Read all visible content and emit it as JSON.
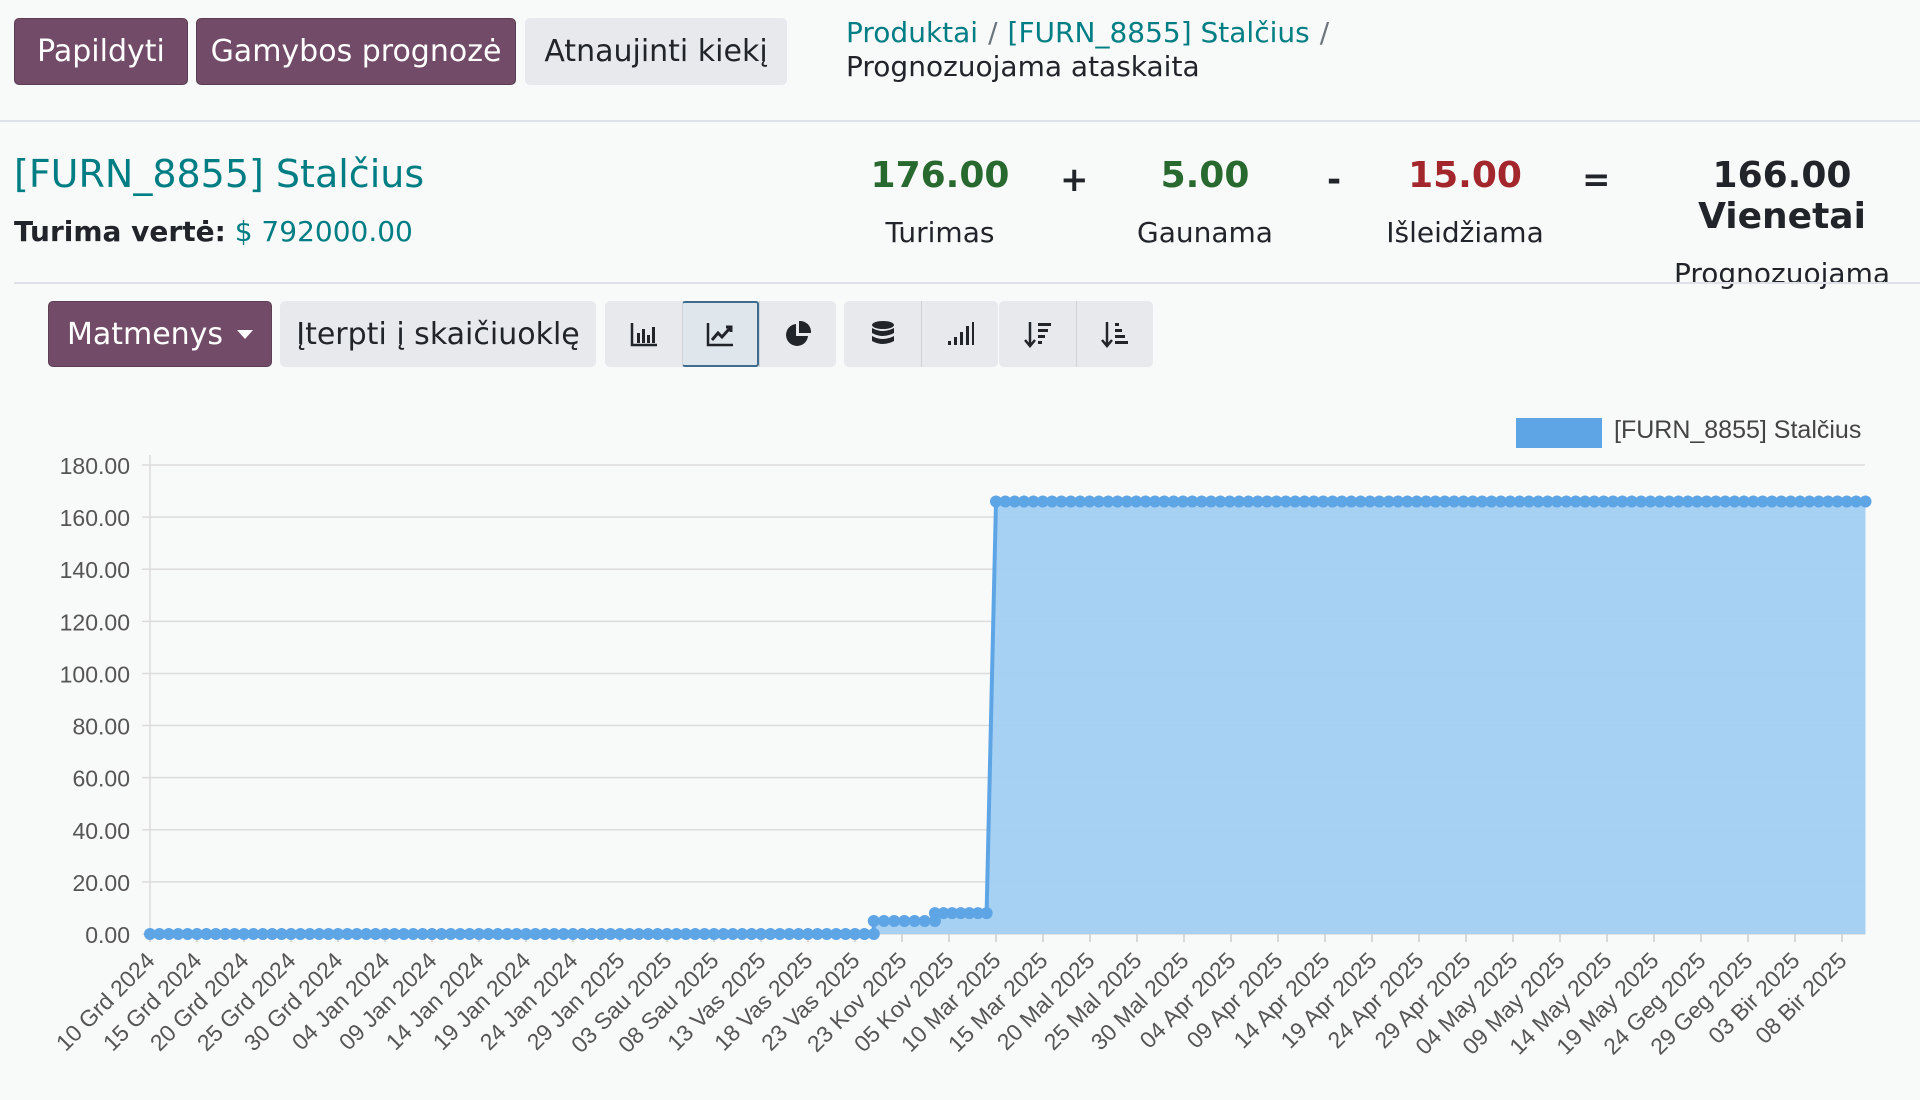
{
  "control_panel": {
    "buttons": {
      "replenish": "Papildyti",
      "manufacturing_forecast": "Gamybos prognozė",
      "update_quantity": "Atnaujinti kiekį"
    },
    "breadcrumb": {
      "items": [
        "Produktai",
        "[FURN_8855] Stalčius"
      ],
      "separator": "/",
      "current": "Prognozuojama ataskaita"
    }
  },
  "product": {
    "name": "[FURN_8855] Stalčius",
    "value_label": "Turima vertė:",
    "value": "$ 792000.00"
  },
  "summary": {
    "on_hand": {
      "value": "176.00",
      "label": "Turimas"
    },
    "op_plus": "+",
    "incoming": {
      "value": "5.00",
      "label": "Gaunama"
    },
    "op_minus": "-",
    "outgoing": {
      "value": "15.00",
      "label": "Išleidžiama"
    },
    "op_equals": "=",
    "forecast": {
      "value": "166.00 Vienetai",
      "label": "Prognozuojama"
    }
  },
  "toolbar": {
    "measures_label": "Matmenys",
    "insert_label": "Įterpti į skaičiuoklę",
    "view_buttons": [
      "bar-chart-icon",
      "line-chart-icon",
      "pie-chart-icon"
    ],
    "active_view": "line-chart-icon",
    "option_buttons": [
      "stacked-icon",
      "cumulative-icon"
    ],
    "sort_buttons": [
      "sort-descending-icon",
      "sort-ascending-icon"
    ]
  },
  "colors": {
    "primary": "#714b67",
    "series": "#5ea5e6",
    "area": "#a2cff2",
    "positive": "#28692f",
    "negative": "#a3262c",
    "link": "#017e84"
  },
  "chart_data": {
    "type": "area",
    "legend": {
      "position": "top-right",
      "entries": [
        "[FURN_8855] Stalčius"
      ]
    },
    "ylim": [
      0,
      180
    ],
    "yticks": [
      "0.00",
      "20.00",
      "40.00",
      "60.00",
      "80.00",
      "100.00",
      "120.00",
      "140.00",
      "160.00",
      "180.00"
    ],
    "grid": true,
    "x_tick_labels": [
      "10 Grd 2024",
      "15 Grd 2024",
      "20 Grd 2024",
      "25 Grd 2024",
      "30 Grd 2024",
      "04 Jan 2024",
      "09 Jan 2024",
      "14 Jan 2024",
      "19 Jan 2024",
      "24 Jan 2024",
      "29 Jan 2025",
      "03 Sau 2025",
      "08 Sau 2025",
      "13 Vas 2025",
      "18 Vas 2025",
      "23 Vas 2025",
      "23 Kov 2025",
      "05 Kov 2025",
      "10 Mar 2025",
      "15 Mar 2025",
      "20 Mal 2025",
      "25 Mal 2025",
      "30 Mal 2025",
      "04 Apr 2025",
      "09 Apr 2025",
      "14 Apr 2025",
      "19 Apr 2025",
      "24 Apr 2025",
      "29 Apr 2025",
      "04 May 2025",
      "09 May 2025",
      "14 May 2025",
      "19 May 2025",
      "24 Geg 2025",
      "29 Geg 2025",
      "03  Bir 2025",
      "08  Bir 2025"
    ],
    "series": [
      {
        "name": "[FURN_8855] Stalčius",
        "segments": [
          {
            "from_tick": 0,
            "to_tick": 15.4,
            "value": 0
          },
          {
            "from_tick": 15.4,
            "to_tick": 16.7,
            "value": 5
          },
          {
            "from_tick": 16.7,
            "to_tick": 17.8,
            "value": 8
          },
          {
            "from_tick": 18.0,
            "to_tick": 36.5,
            "value": 166
          }
        ]
      }
    ]
  }
}
